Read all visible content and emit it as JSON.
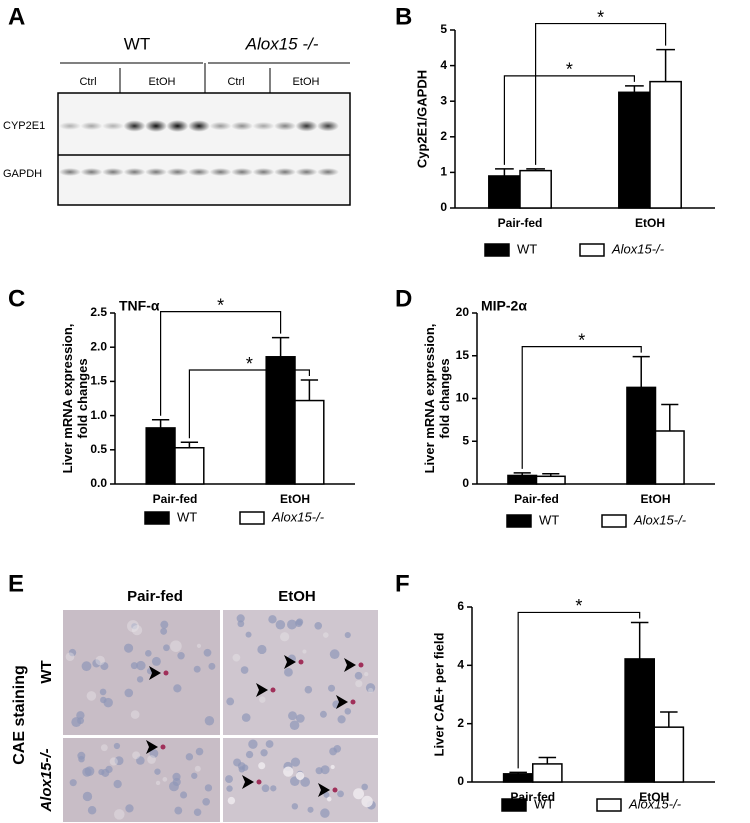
{
  "panel_labels": [
    "A",
    "B",
    "C",
    "D",
    "E",
    "F"
  ],
  "blot": {
    "groups": [
      "WT",
      "Alox15 -/-"
    ],
    "conditions": [
      "Ctrl",
      "EtOH",
      "Ctrl",
      "EtOH"
    ],
    "rows": [
      "CYP2E1",
      "GAPDH"
    ]
  },
  "histology": {
    "columns": [
      "Pair-fed",
      "EtOH"
    ],
    "rows": [
      "WT",
      "Alox15-/-"
    ],
    "stain": "CAE staining"
  },
  "chart_data": [
    {
      "type": "bar",
      "ylabel": [
        "Cyp2E1/GAPDH"
      ],
      "categories": [
        "Pair-fed",
        "EtOH"
      ],
      "series": [
        {
          "name": "WT",
          "color": "#000000",
          "values": [
            0.9,
            3.25
          ],
          "errors": [
            0.2,
            0.18
          ]
        },
        {
          "name": "Alox15-/-",
          "color": "#ffffff",
          "values": [
            1.05,
            3.55
          ],
          "errors": [
            0.05,
            0.9
          ]
        }
      ],
      "ylim": [
        0,
        5
      ],
      "yticks": [
        0,
        1,
        2,
        3,
        4,
        5
      ],
      "annotations": [
        "*",
        "*"
      ]
    },
    {
      "type": "bar",
      "title": "TNF-α",
      "ylabel": [
        "Liver mRNA expression,",
        "fold changes"
      ],
      "categories": [
        "Pair-fed",
        "EtOH"
      ],
      "series": [
        {
          "name": "WT",
          "color": "#000000",
          "values": [
            0.82,
            1.86
          ],
          "errors": [
            0.12,
            0.28
          ]
        },
        {
          "name": "Alox15-/-",
          "color": "#ffffff",
          "values": [
            0.53,
            1.22
          ],
          "errors": [
            0.08,
            0.3
          ]
        }
      ],
      "ylim": [
        0,
        2.5
      ],
      "yticks": [
        {
          "value": 0,
          "label": "0.0"
        },
        0.5,
        {
          "value": 1,
          "label": "1.0"
        },
        1.5,
        {
          "value": 2,
          "label": "2.0"
        },
        2.5
      ],
      "annotations": [
        "*",
        "*"
      ]
    },
    {
      "type": "bar",
      "title": "MIP-2α",
      "ylabel": [
        "Liver mRNA expression,",
        "fold changes"
      ],
      "categories": [
        "Pair-fed",
        "EtOH"
      ],
      "series": [
        {
          "name": "WT",
          "color": "#000000",
          "values": [
            1.0,
            11.3
          ],
          "errors": [
            0.3,
            3.6
          ]
        },
        {
          "name": "Alox15-/-",
          "color": "#ffffff",
          "values": [
            0.9,
            6.2
          ],
          "errors": [
            0.3,
            3.1
          ]
        }
      ],
      "ylim": [
        0,
        20
      ],
      "yticks": [
        0,
        5,
        10,
        15,
        20
      ],
      "annotations": [
        "*"
      ]
    },
    {
      "type": "bar",
      "ylabel": [
        "Liver CAE+ per field"
      ],
      "categories": [
        "Pair-fed",
        "EtOH"
      ],
      "series": [
        {
          "name": "WT",
          "color": "#000000",
          "values": [
            0.28,
            4.22
          ],
          "errors": [
            0.05,
            1.25
          ]
        },
        {
          "name": "Alox15-/-",
          "color": "#ffffff",
          "values": [
            0.62,
            1.88
          ],
          "errors": [
            0.22,
            0.52
          ]
        }
      ],
      "ylim": [
        0,
        6
      ],
      "yticks": [
        0,
        2,
        4,
        6
      ],
      "annotations": [
        "*"
      ]
    }
  ]
}
